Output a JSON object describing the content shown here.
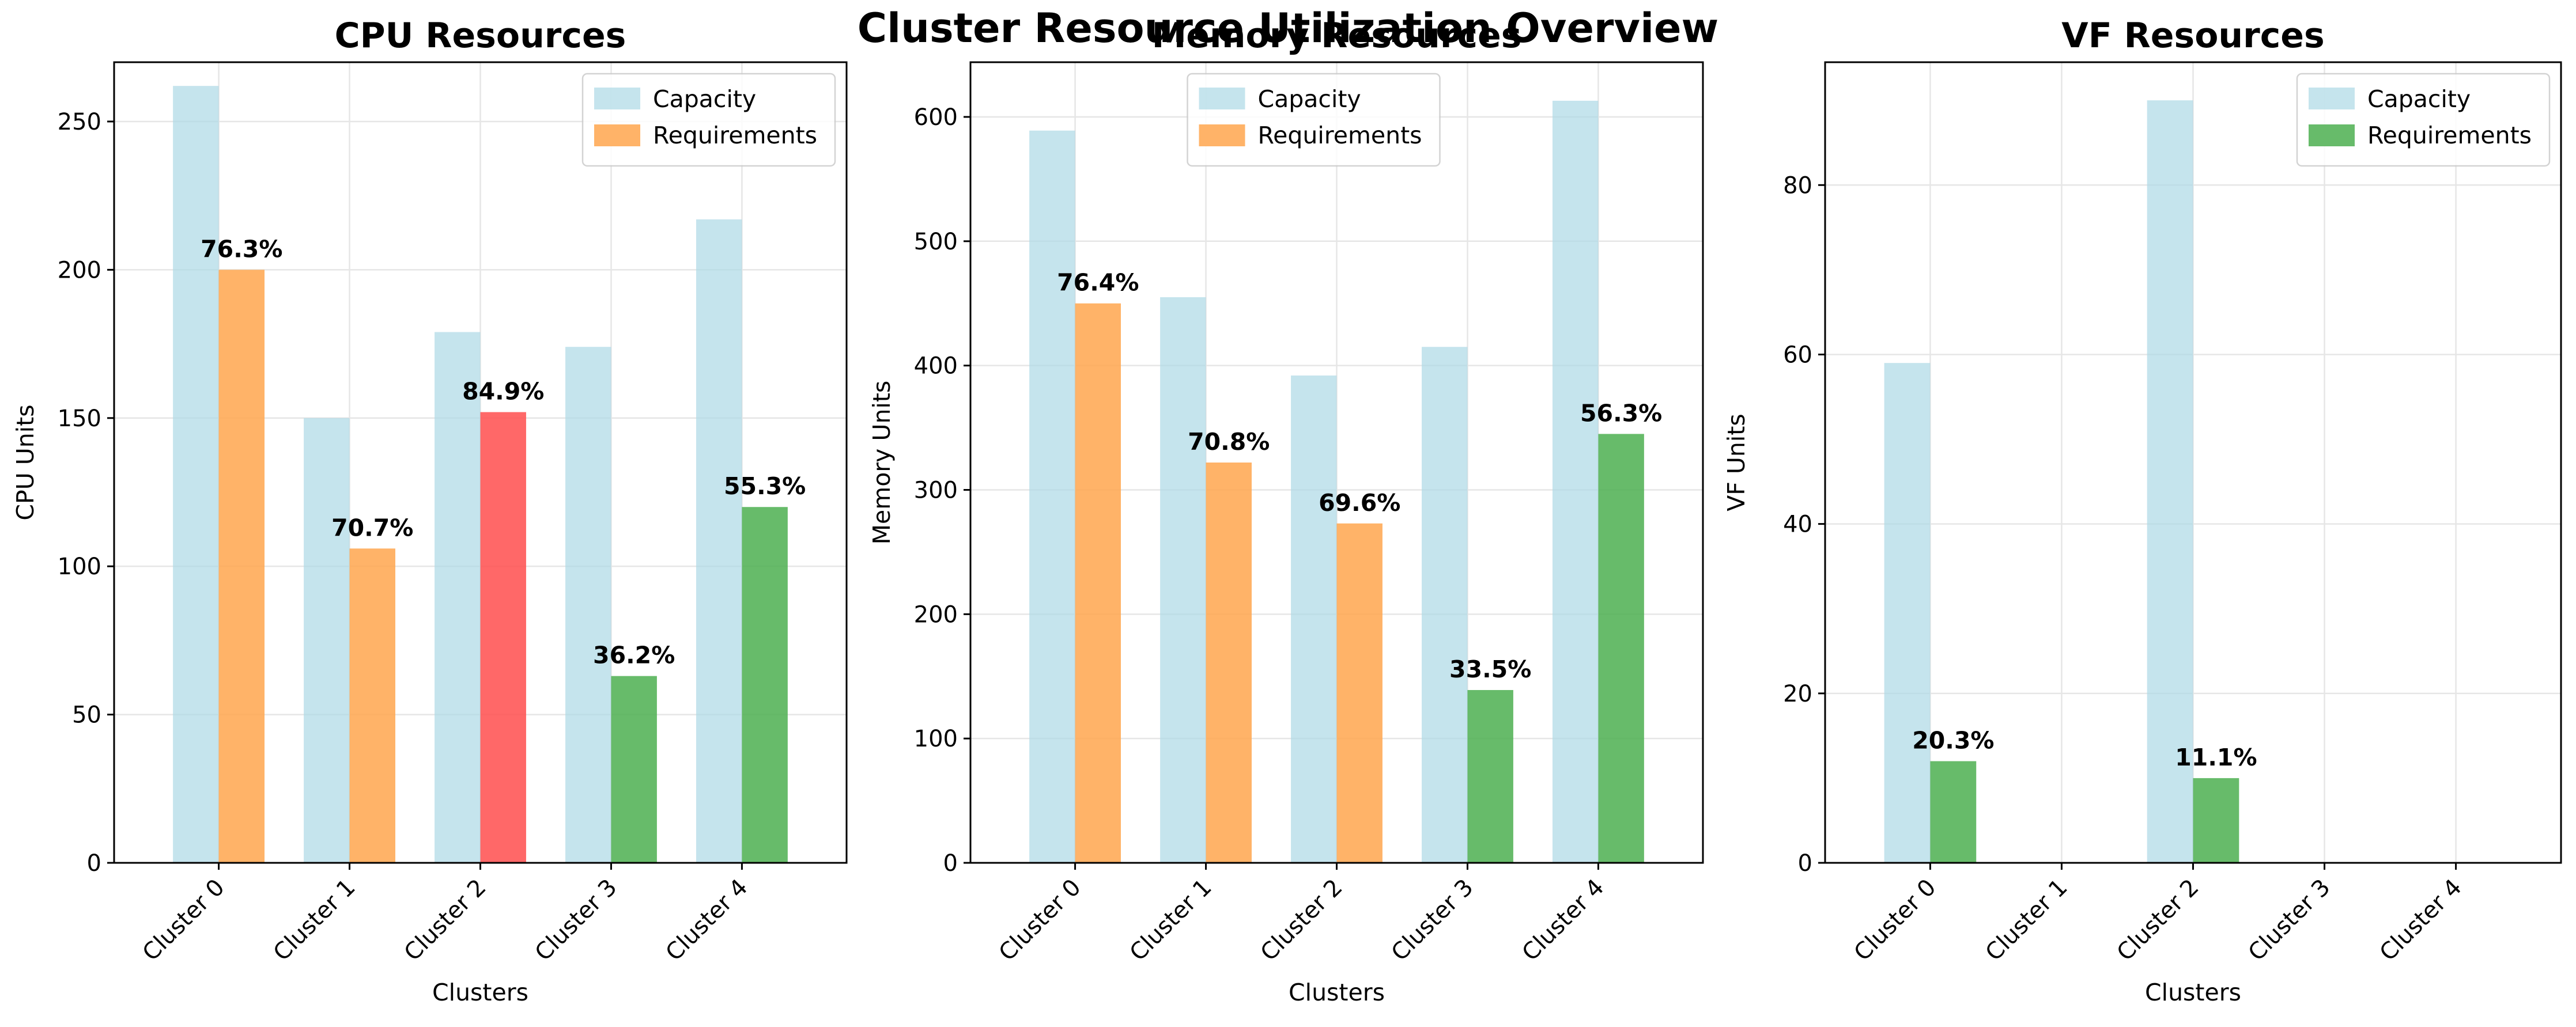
{
  "figure_title": "Cluster Resource Utilization Overview",
  "colors": {
    "capacity": "#add8e6",
    "requirement_normal": "#ffa64d",
    "requirement_high": "#ff4d4d",
    "requirement_low": "#4caf50",
    "grid": "#e6e6e6",
    "axis": "#000000"
  },
  "chart_data": [
    {
      "type": "bar",
      "title": "CPU Resources",
      "xlabel": "Clusters",
      "ylabel": "CPU Units",
      "categories": [
        "Cluster 0",
        "Cluster 1",
        "Cluster 2",
        "Cluster 3",
        "Cluster 4"
      ],
      "ylim": [
        0,
        270
      ],
      "yticks": [
        0,
        50,
        100,
        150,
        200,
        250
      ],
      "grid": true,
      "legend": "top-right",
      "legend_entries": [
        "Capacity",
        "Requirements"
      ],
      "series": [
        {
          "name": "Capacity",
          "values": [
            262,
            150,
            179,
            174,
            217
          ]
        },
        {
          "name": "Requirements",
          "values": [
            200,
            106,
            152,
            63,
            120
          ]
        }
      ],
      "bar_colors": [
        "requirement_normal",
        "requirement_normal",
        "requirement_high",
        "requirement_low",
        "requirement_low"
      ],
      "labels": [
        "76.3%",
        "70.7%",
        "84.9%",
        "36.2%",
        "55.3%"
      ]
    },
    {
      "type": "bar",
      "title": "Memory Resources",
      "xlabel": "Clusters",
      "ylabel": "Memory Units",
      "categories": [
        "Cluster 0",
        "Cluster 1",
        "Cluster 2",
        "Cluster 3",
        "Cluster 4"
      ],
      "ylim": [
        0,
        644
      ],
      "yticks": [
        0,
        100,
        200,
        300,
        400,
        500,
        600
      ],
      "grid": true,
      "legend": "top-center",
      "legend_entries": [
        "Capacity",
        "Requirements"
      ],
      "series": [
        {
          "name": "Capacity",
          "values": [
            589,
            455,
            392,
            415,
            613
          ]
        },
        {
          "name": "Requirements",
          "values": [
            450,
            322,
            273,
            139,
            345
          ]
        }
      ],
      "bar_colors": [
        "requirement_normal",
        "requirement_normal",
        "requirement_normal",
        "requirement_low",
        "requirement_low"
      ],
      "labels": [
        "76.4%",
        "70.8%",
        "69.6%",
        "33.5%",
        "56.3%"
      ]
    },
    {
      "type": "bar",
      "title": "VF Resources",
      "xlabel": "Clusters",
      "ylabel": "VF Units",
      "categories": [
        "Cluster 0",
        "Cluster 1",
        "Cluster 2",
        "Cluster 3",
        "Cluster 4"
      ],
      "ylim": [
        0,
        94.5
      ],
      "yticks": [
        0,
        20,
        40,
        60,
        80
      ],
      "grid": true,
      "legend": "top-right",
      "legend_entries": [
        "Capacity",
        "Requirements"
      ],
      "series": [
        {
          "name": "Capacity",
          "values": [
            59,
            0,
            90,
            0,
            0
          ]
        },
        {
          "name": "Requirements",
          "values": [
            12,
            0,
            10,
            0,
            0
          ]
        }
      ],
      "bar_colors": [
        "requirement_low",
        "requirement_low",
        "requirement_low",
        "requirement_low",
        "requirement_low"
      ],
      "labels": [
        "20.3%",
        "",
        "11.1%",
        "",
        ""
      ]
    }
  ]
}
